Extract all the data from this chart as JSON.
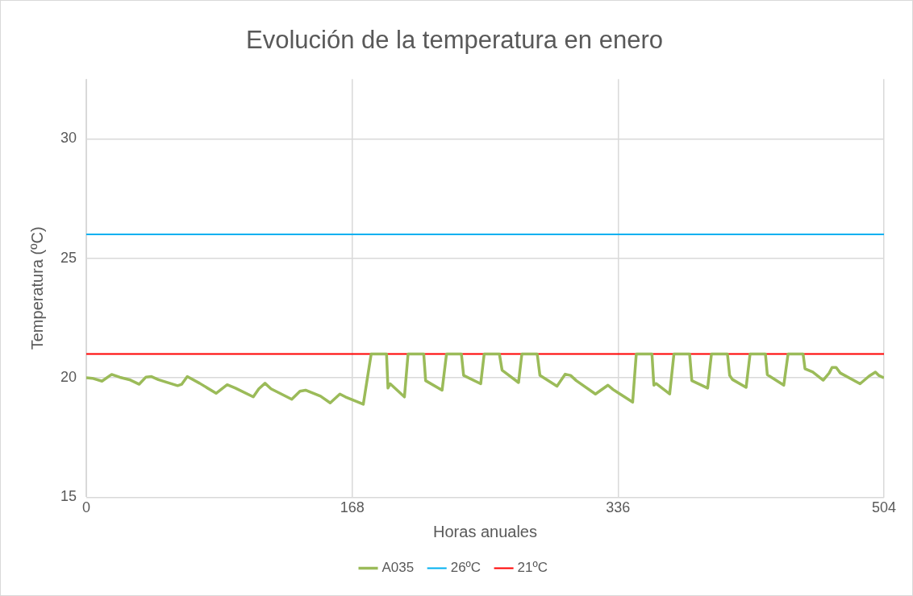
{
  "chart_data": {
    "type": "line",
    "title": "Evolución de la temperatura en enero",
    "xlabel": "Horas anuales",
    "ylabel": "Temperatura (ºC)",
    "xlim": [
      0,
      504
    ],
    "xticks": [
      0,
      168,
      336,
      504
    ],
    "ylim": [
      15,
      32.5
    ],
    "yticks": [
      15,
      20,
      25,
      30
    ],
    "grid": true,
    "legend": "bottom",
    "marker": "none",
    "line_style": "solid",
    "series": [
      {
        "name": "A035",
        "color": "#9bbb59",
        "x": [
          0,
          3.8,
          9.9,
          16,
          21.2,
          27.3,
          33.4,
          37.7,
          41.2,
          45.5,
          57.7,
          60.3,
          63.8,
          71.6,
          82,
          89,
          94.2,
          105.5,
          109,
          112.9,
          116.7,
          129.8,
          135,
          138.5,
          148,
          154.1,
          160.2,
          163.7,
          175,
          180,
          189.7,
          190.6,
          192,
          201,
          203.3,
          213.2,
          214.4,
          224.8,
          227.6,
          237,
          238.4,
          249.2,
          251.4,
          261,
          262.7,
          273.1,
          275.2,
          284.9,
          286.6,
          297.4,
          302.6,
          306,
          309.6,
          321.7,
          329.6,
          333,
          345.2,
          347.5,
          357.4,
          358.6,
          360,
          368.6,
          371.3,
          381.2,
          382.6,
          392.6,
          395,
          405.1,
          406.5,
          408.2,
          416.9,
          419.4,
          429.1,
          430.3,
          440.7,
          443.4,
          452.9,
          454.1,
          459,
          465.6,
          469.4,
          471.2,
          473.8,
          476.4,
          488.9,
          494.6,
          498.6,
          500.7,
          504
        ],
        "values": [
          20,
          19.98,
          19.86,
          20.14,
          20.02,
          19.92,
          19.73,
          20.03,
          20.05,
          19.92,
          19.67,
          19.73,
          20.05,
          19.77,
          19.35,
          19.71,
          19.57,
          19.2,
          19.54,
          19.77,
          19.54,
          19.1,
          19.44,
          19.48,
          19.23,
          18.95,
          19.32,
          19.2,
          18.89,
          21,
          21,
          19.57,
          19.75,
          19.2,
          21,
          21,
          19.88,
          19.48,
          21,
          21,
          20.1,
          19.75,
          21,
          21,
          20.32,
          19.8,
          21,
          21,
          20.1,
          19.65,
          20.15,
          20.1,
          19.88,
          19.32,
          19.69,
          19.5,
          18.98,
          21,
          21,
          19.69,
          19.76,
          19.32,
          21,
          21,
          19.88,
          19.57,
          21,
          21,
          20.1,
          19.93,
          19.6,
          21,
          21,
          20.13,
          19.69,
          21,
          21,
          20.38,
          20.24,
          19.9,
          20.2,
          20.43,
          20.43,
          20.2,
          19.75,
          20.07,
          20.24,
          20.1,
          20
        ]
      },
      {
        "name": "26ºC",
        "color": "#00b0f0",
        "x": [
          0,
          504
        ],
        "values": [
          26,
          26
        ]
      },
      {
        "name": "21ºC",
        "color": "#ff0000",
        "x": [
          0,
          504
        ],
        "values": [
          21,
          21
        ]
      }
    ]
  }
}
